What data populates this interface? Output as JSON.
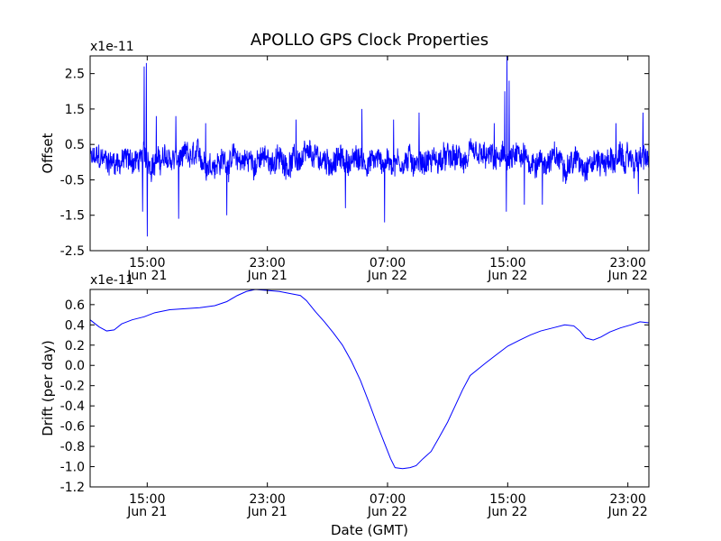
{
  "figure": {
    "title": "APOLLO GPS Clock Properties",
    "xlabel": "Date (GMT)"
  },
  "chart_data": [
    {
      "type": "line",
      "title": "APOLLO GPS Clock Properties",
      "ylabel": "Offset",
      "scale_label": "x1e-11",
      "xlabel": "",
      "x_range_hours": [
        11.2,
        48.4
      ],
      "xticks": [
        {
          "h": 15,
          "time": "15:00",
          "date": "Jun 21"
        },
        {
          "h": 23,
          "time": "23:00",
          "date": "Jun 21"
        },
        {
          "h": 31,
          "time": "07:00",
          "date": "Jun 22"
        },
        {
          "h": 39,
          "time": "15:00",
          "date": "Jun 22"
        },
        {
          "h": 47,
          "time": "23:00",
          "date": "Jun 22"
        }
      ],
      "ylim": [
        -2.5,
        3.0
      ],
      "yticks": [
        {
          "v": 2.5,
          "label": "2.5"
        },
        {
          "v": 1.5,
          "label": "1.5"
        },
        {
          "v": 0.5,
          "label": "0.5"
        },
        {
          "v": -0.5,
          "label": "-0.5"
        },
        {
          "v": -1.5,
          "label": "-1.5"
        },
        {
          "v": -2.5,
          "label": "-2.5"
        }
      ],
      "color": "#0000ff",
      "noise": {
        "n_points": 1800,
        "base_amplitude": 0.32,
        "spikes": [
          {
            "h": 14.8,
            "v": 2.7
          },
          {
            "h": 14.95,
            "v": 2.8
          },
          {
            "h": 15.0,
            "v": -2.1
          },
          {
            "h": 14.7,
            "v": -1.4
          },
          {
            "h": 15.6,
            "v": 1.3
          },
          {
            "h": 17.1,
            "v": -1.6
          },
          {
            "h": 16.9,
            "v": 1.3
          },
          {
            "h": 18.9,
            "v": 1.1
          },
          {
            "h": 20.3,
            "v": -1.5
          },
          {
            "h": 24.9,
            "v": 1.2
          },
          {
            "h": 28.2,
            "v": -1.3
          },
          {
            "h": 29.3,
            "v": 1.5
          },
          {
            "h": 30.8,
            "v": -1.7
          },
          {
            "h": 31.4,
            "v": 1.2
          },
          {
            "h": 33.1,
            "v": 1.4
          },
          {
            "h": 38.1,
            "v": 1.1
          },
          {
            "h": 38.8,
            "v": 2.0
          },
          {
            "h": 38.95,
            "v": 3.0
          },
          {
            "h": 39.1,
            "v": 2.3
          },
          {
            "h": 38.9,
            "v": -1.4
          },
          {
            "h": 40.1,
            "v": -1.2
          },
          {
            "h": 41.3,
            "v": -1.2
          },
          {
            "h": 46.2,
            "v": 1.1
          },
          {
            "h": 48.0,
            "v": 1.4
          },
          {
            "h": 47.7,
            "v": -0.9
          }
        ]
      }
    },
    {
      "type": "line",
      "ylabel": "Drift (per day)",
      "scale_label": "x1e-11",
      "xlabel": "Date (GMT)",
      "x_range_hours": [
        11.2,
        48.4
      ],
      "xticks": [
        {
          "h": 15,
          "time": "15:00",
          "date": "Jun 21"
        },
        {
          "h": 23,
          "time": "23:00",
          "date": "Jun 21"
        },
        {
          "h": 31,
          "time": "07:00",
          "date": "Jun 22"
        },
        {
          "h": 39,
          "time": "15:00",
          "date": "Jun 22"
        },
        {
          "h": 47,
          "time": "23:00",
          "date": "Jun 22"
        }
      ],
      "ylim": [
        -1.2,
        0.75
      ],
      "yticks": [
        {
          "v": 0.6,
          "label": "0.6"
        },
        {
          "v": 0.4,
          "label": "0.4"
        },
        {
          "v": 0.2,
          "label": "0.2"
        },
        {
          "v": 0.0,
          "label": "0.0"
        },
        {
          "v": -0.2,
          "label": "-0.2"
        },
        {
          "v": -0.4,
          "label": "-0.4"
        },
        {
          "v": -0.6,
          "label": "-0.6"
        },
        {
          "v": -0.8,
          "label": "-0.8"
        },
        {
          "v": -1.0,
          "label": "-1.0"
        },
        {
          "v": -1.2,
          "label": "-1.2"
        }
      ],
      "color": "#0000ff",
      "points": [
        [
          11.2,
          0.45
        ],
        [
          11.8,
          0.38
        ],
        [
          12.3,
          0.34
        ],
        [
          12.8,
          0.35
        ],
        [
          13.3,
          0.41
        ],
        [
          14.0,
          0.45
        ],
        [
          14.8,
          0.48
        ],
        [
          15.5,
          0.52
        ],
        [
          16.5,
          0.55
        ],
        [
          17.5,
          0.56
        ],
        [
          18.5,
          0.57
        ],
        [
          19.5,
          0.59
        ],
        [
          20.3,
          0.63
        ],
        [
          21.0,
          0.69
        ],
        [
          21.6,
          0.73
        ],
        [
          22.2,
          0.75
        ],
        [
          23.0,
          0.74
        ],
        [
          23.8,
          0.73
        ],
        [
          24.5,
          0.71
        ],
        [
          25.2,
          0.69
        ],
        [
          25.6,
          0.64
        ],
        [
          26.2,
          0.53
        ],
        [
          26.8,
          0.43
        ],
        [
          27.4,
          0.32
        ],
        [
          28.0,
          0.2
        ],
        [
          28.6,
          0.04
        ],
        [
          29.2,
          -0.15
        ],
        [
          29.8,
          -0.38
        ],
        [
          30.3,
          -0.58
        ],
        [
          30.8,
          -0.77
        ],
        [
          31.2,
          -0.92
        ],
        [
          31.5,
          -1.01
        ],
        [
          32.0,
          -1.02
        ],
        [
          32.5,
          -1.01
        ],
        [
          32.9,
          -0.99
        ],
        [
          33.3,
          -0.93
        ],
        [
          33.9,
          -0.85
        ],
        [
          34.4,
          -0.72
        ],
        [
          35.0,
          -0.56
        ],
        [
          35.5,
          -0.4
        ],
        [
          36.0,
          -0.24
        ],
        [
          36.5,
          -0.1
        ],
        [
          37.0,
          -0.04
        ],
        [
          37.5,
          0.02
        ],
        [
          38.2,
          0.1
        ],
        [
          39.0,
          0.19
        ],
        [
          39.8,
          0.25
        ],
        [
          40.5,
          0.3
        ],
        [
          41.2,
          0.34
        ],
        [
          42.0,
          0.37
        ],
        [
          42.8,
          0.4
        ],
        [
          43.4,
          0.39
        ],
        [
          43.8,
          0.34
        ],
        [
          44.2,
          0.27
        ],
        [
          44.7,
          0.25
        ],
        [
          45.2,
          0.28
        ],
        [
          45.8,
          0.33
        ],
        [
          46.5,
          0.37
        ],
        [
          47.2,
          0.4
        ],
        [
          47.8,
          0.43
        ],
        [
          48.4,
          0.42
        ]
      ]
    }
  ]
}
